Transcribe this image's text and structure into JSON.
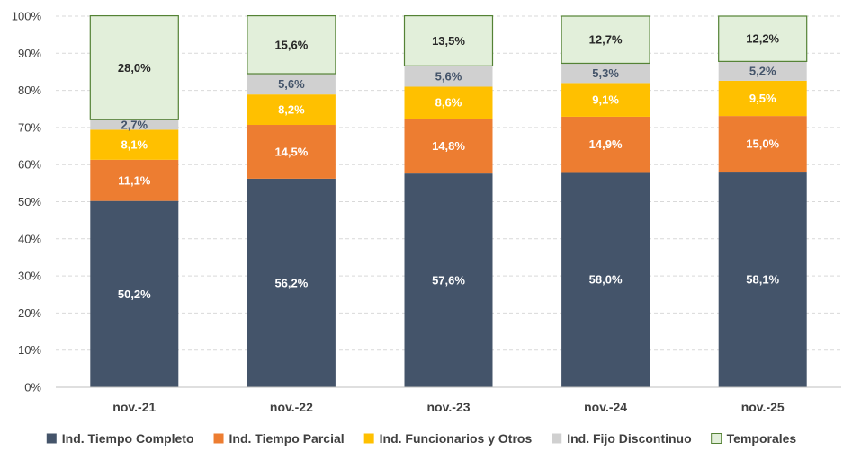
{
  "chart_data": {
    "type": "bar",
    "stacked": true,
    "title": "",
    "xlabel": "",
    "ylabel": "",
    "ylim": [
      0,
      100
    ],
    "yticks": [
      "0%",
      "10%",
      "20%",
      "30%",
      "40%",
      "50%",
      "60%",
      "70%",
      "80%",
      "90%",
      "100%"
    ],
    "categories": [
      "nov.-21",
      "nov.-22",
      "nov.-23",
      "nov.-24",
      "nov.-25"
    ],
    "grid": true,
    "legend_position": "bottom",
    "series": [
      {
        "name": "Ind. Tiempo Completo",
        "color": "#44546a",
        "label_color": "#ffffff",
        "values": [
          50.2,
          56.2,
          57.6,
          58.0,
          58.1
        ],
        "labels": [
          "50,2%",
          "56,2%",
          "57,6%",
          "58,0%",
          "58,1%"
        ]
      },
      {
        "name": "Ind. Tiempo Parcial",
        "color": "#ed7d31",
        "label_color": "#ffffff",
        "values": [
          11.1,
          14.5,
          14.8,
          14.9,
          15.0
        ],
        "labels": [
          "11,1%",
          "14,5%",
          "14,8%",
          "14,9%",
          "15,0%"
        ]
      },
      {
        "name": "Ind. Funcionarios y Otros",
        "color": "#ffc000",
        "label_color": "#ffffff",
        "values": [
          8.1,
          8.2,
          8.6,
          9.1,
          9.5
        ],
        "labels": [
          "8,1%",
          "8,2%",
          "8,6%",
          "9,1%",
          "9,5%"
        ]
      },
      {
        "name": "Ind. Fijo Discontinuo",
        "color": "#d0d0d0",
        "label_color": "#44546a",
        "values": [
          2.7,
          5.6,
          5.6,
          5.3,
          5.2
        ],
        "labels": [
          "2,7%",
          "5,6%",
          "5,6%",
          "5,3%",
          "5,2%"
        ]
      },
      {
        "name": "Temporales",
        "color": "#e2efda",
        "stroke": "#548235",
        "label_color": "#262626",
        "values": [
          28.0,
          15.6,
          13.5,
          12.7,
          12.2
        ],
        "labels": [
          "28,0%",
          "15,6%",
          "13,5%",
          "12,7%",
          "12,2%"
        ]
      }
    ]
  }
}
